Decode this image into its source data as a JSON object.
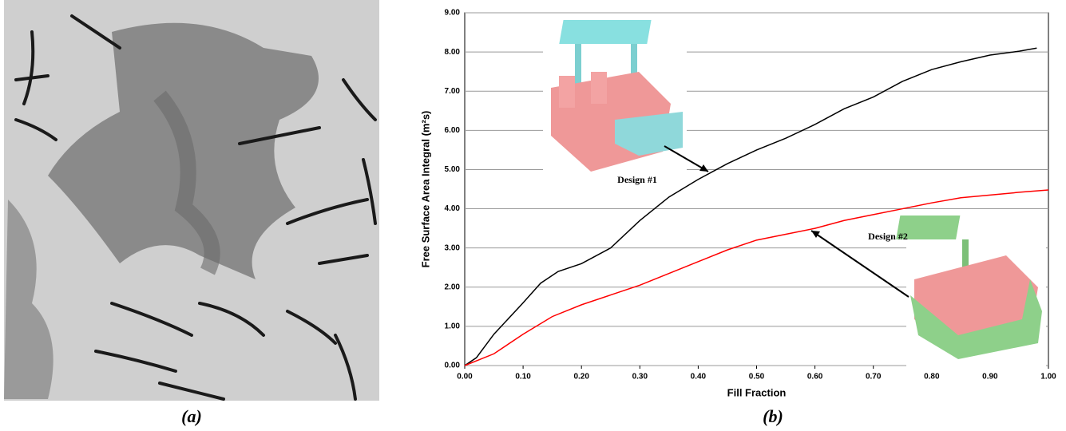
{
  "chart_data": {
    "type": "line",
    "xlabel": "Fill Fraction",
    "ylabel": "Free Surface Area Integral (m²s)",
    "xlim": [
      0,
      1
    ],
    "ylim": [
      0,
      9
    ],
    "xticks": [
      {
        "value": 0,
        "label": "0.00"
      },
      {
        "value": 0.1,
        "label": "0.10"
      },
      {
        "value": 0.2,
        "label": "0.20"
      },
      {
        "value": 0.3,
        "label": "0.30"
      },
      {
        "value": 0.4,
        "label": "0.40"
      },
      {
        "value": 0.5,
        "label": "0.50"
      },
      {
        "value": 0.6,
        "label": "0.60"
      },
      {
        "value": 0.7,
        "label": "0.70"
      },
      {
        "value": 0.8,
        "label": "0.80"
      },
      {
        "value": 0.9,
        "label": "0.90"
      },
      {
        "value": 1,
        "label": "1.00"
      }
    ],
    "yticks": [
      {
        "value": 0,
        "label": "0.00"
      },
      {
        "value": 1,
        "label": "1.00"
      },
      {
        "value": 2,
        "label": "2.00"
      },
      {
        "value": 3,
        "label": "3.00"
      },
      {
        "value": 4,
        "label": "4.00"
      },
      {
        "value": 5,
        "label": "5.00"
      },
      {
        "value": 6,
        "label": "6.00"
      },
      {
        "value": 7,
        "label": "7.00"
      },
      {
        "value": 8,
        "label": "8.00"
      },
      {
        "value": 9,
        "label": "9.00"
      }
    ],
    "grid": true,
    "series": [
      {
        "name": "Design #1",
        "color": "#000000",
        "x": [
          0,
          0.02,
          0.05,
          0.1,
          0.13,
          0.16,
          0.2,
          0.25,
          0.3,
          0.35,
          0.4,
          0.45,
          0.5,
          0.55,
          0.6,
          0.65,
          0.7,
          0.75,
          0.8,
          0.85,
          0.9,
          0.95,
          0.98
        ],
        "values": [
          0,
          0.2,
          0.8,
          1.6,
          2.1,
          2.4,
          2.6,
          3.0,
          3.7,
          4.3,
          4.75,
          5.15,
          5.5,
          5.8,
          6.15,
          6.55,
          6.85,
          7.25,
          7.55,
          7.75,
          7.92,
          8.02,
          8.1
        ]
      },
      {
        "name": "Design #2",
        "color": "#ff0000",
        "x": [
          0,
          0.05,
          0.1,
          0.15,
          0.2,
          0.25,
          0.3,
          0.35,
          0.4,
          0.45,
          0.5,
          0.55,
          0.6,
          0.65,
          0.7,
          0.75,
          0.8,
          0.85,
          0.9,
          0.95,
          1
        ],
        "values": [
          0,
          0.3,
          0.8,
          1.25,
          1.55,
          1.8,
          2.05,
          2.35,
          2.65,
          2.95,
          3.2,
          3.35,
          3.5,
          3.7,
          3.85,
          4.0,
          4.15,
          4.28,
          4.35,
          4.42,
          4.48
        ]
      }
    ]
  },
  "captions": [
    "(a)",
    "(b)"
  ]
}
